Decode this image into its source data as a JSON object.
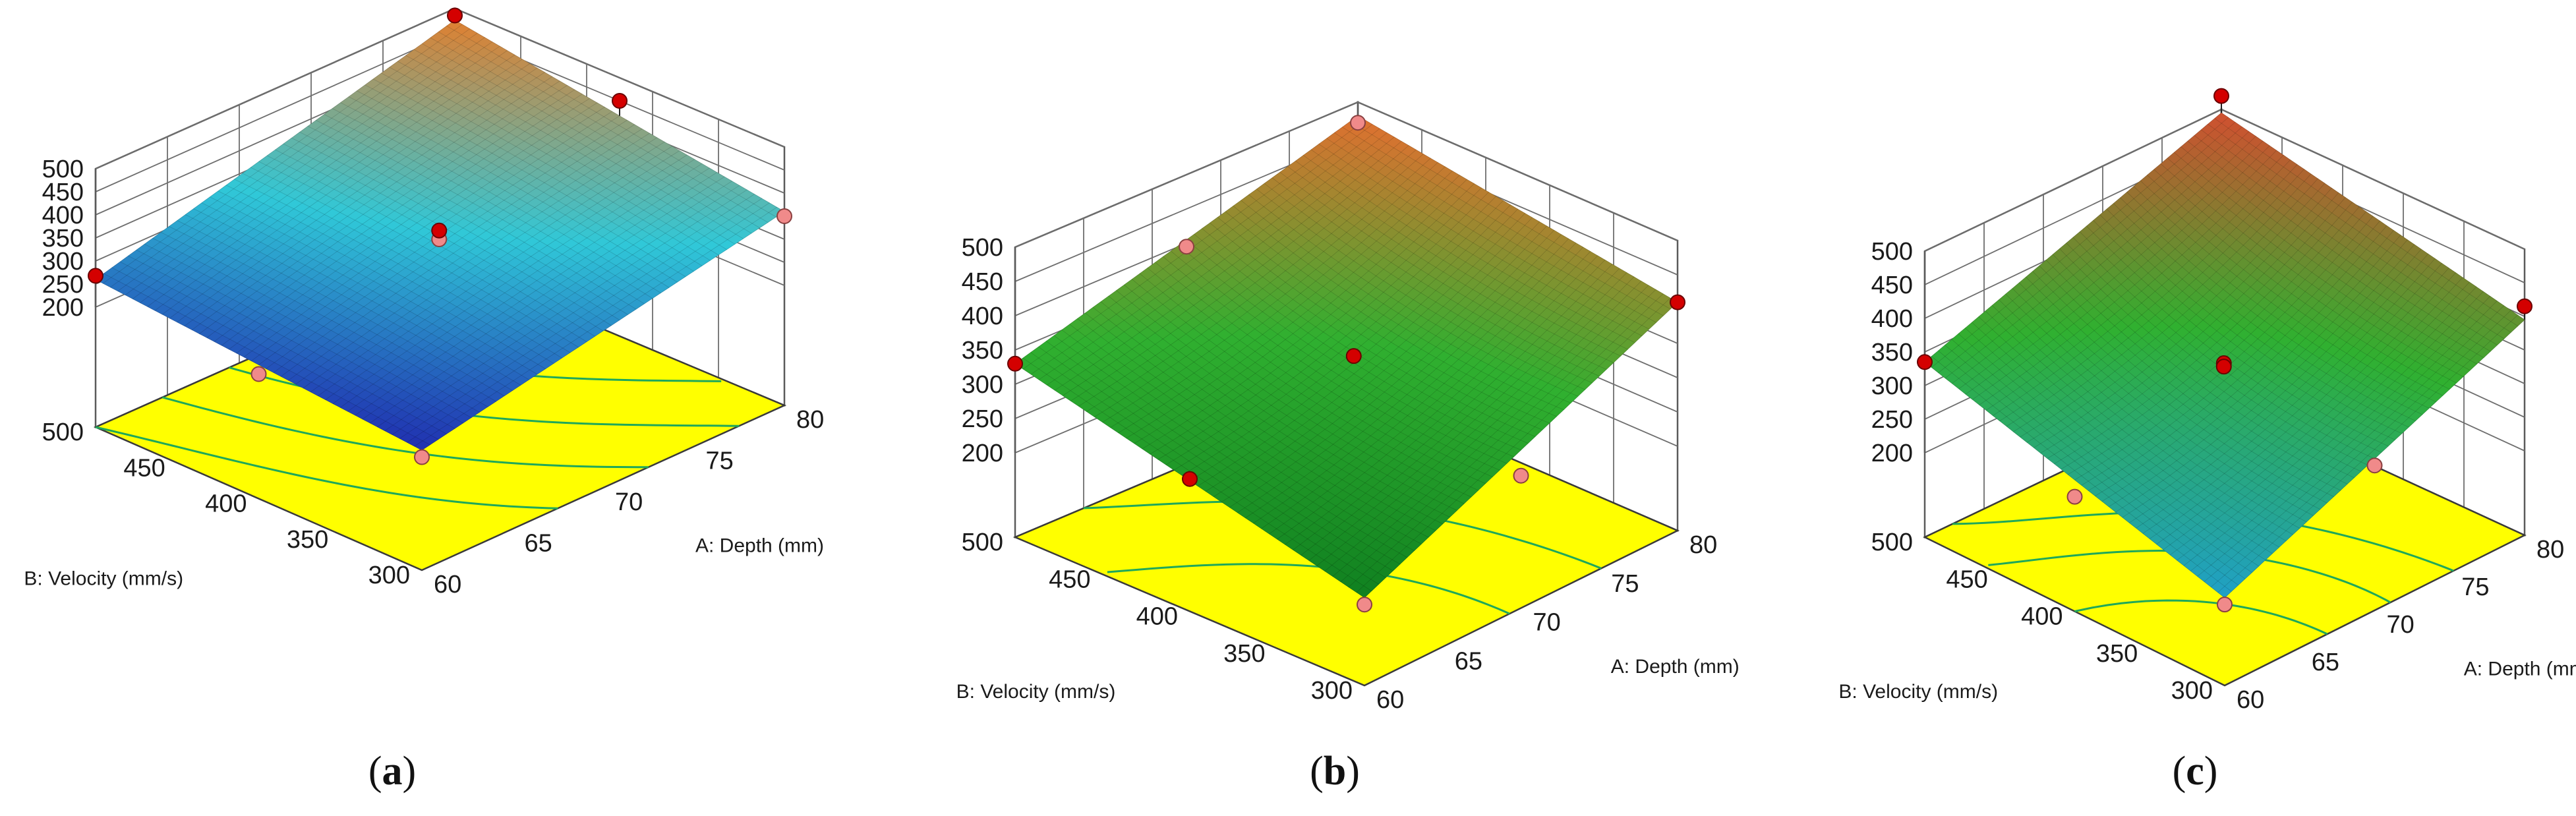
{
  "chart_data": [
    {
      "type": "surface3d",
      "panel_label": "a",
      "zlim": [
        200,
        500
      ],
      "z_ticks": [
        200,
        250,
        300,
        350,
        400,
        450,
        500
      ],
      "xlabel": "A: Depth (mm)",
      "ylabel": "B: Velocity (mm/s)",
      "x_range": [
        60,
        80
      ],
      "x_ticks": [
        60,
        65,
        70,
        75,
        80
      ],
      "y_range": [
        300,
        500
      ],
      "y_ticks": [
        300,
        350,
        400,
        450,
        500
      ],
      "corners": {
        "depth60_vel300": 200,
        "depth80_vel300": 360,
        "depth60_vel500": 260,
        "depth80_vel500": 475
      },
      "center_value": 335,
      "color_low": "#2030b0",
      "color_mid": "#30c8d8",
      "color_high": "#e08030",
      "contours": [
        260,
        300,
        340,
        380
      ],
      "points": [
        {
          "depth": 60,
          "velocity": 300,
          "value": 185
        },
        {
          "depth": 80,
          "velocity": 500,
          "value": 485
        },
        {
          "depth": 80,
          "velocity": 400,
          "value": 450
        },
        {
          "depth": 60,
          "velocity": 500,
          "value": 268
        },
        {
          "depth": 70,
          "velocity": 400,
          "value": 345
        },
        {
          "depth": 70,
          "velocity": 400,
          "value": 326
        },
        {
          "depth": 80,
          "velocity": 300,
          "value": 350
        },
        {
          "depth": 60,
          "velocity": 400,
          "value": 210
        }
      ]
    },
    {
      "type": "surface3d",
      "panel_label": "b",
      "zlim": [
        200,
        500
      ],
      "z_ticks": [
        200,
        250,
        300,
        350,
        400,
        450,
        500
      ],
      "xlabel": "A: Depth (mm)",
      "ylabel": "B: Velocity (mm/s)",
      "x_range": [
        60,
        80
      ],
      "x_ticks": [
        60,
        65,
        70,
        75,
        80
      ],
      "y_range": [
        300,
        500
      ],
      "y_ticks": [
        300,
        350,
        400,
        450,
        500
      ],
      "corners": {
        "depth60_vel300": 205,
        "depth80_vel300": 410,
        "depth60_vel500": 330,
        "depth80_vel500": 480
      },
      "center_value": 330,
      "color_low": "#108020",
      "color_mid": "#30b030",
      "color_high": "#e07030",
      "contours": [
        300,
        360
      ],
      "points": [
        {
          "depth": 60,
          "velocity": 300,
          "value": 195
        },
        {
          "depth": 80,
          "velocity": 500,
          "value": 470
        },
        {
          "depth": 80,
          "velocity": 300,
          "value": 410
        },
        {
          "depth": 60,
          "velocity": 500,
          "value": 330
        },
        {
          "depth": 70,
          "velocity": 400,
          "value": 340
        },
        {
          "depth": 70,
          "velocity": 500,
          "value": 395
        },
        {
          "depth": 70,
          "velocity": 300,
          "value": 270
        },
        {
          "depth": 60,
          "velocity": 400,
          "value": 270
        }
      ]
    },
    {
      "type": "surface3d",
      "panel_label": "c",
      "zlim": [
        200,
        500
      ],
      "z_ticks": [
        200,
        250,
        300,
        350,
        400,
        450,
        500
      ],
      "xlabel": "A: Depth (mm)",
      "ylabel": "B: Velocity (mm/s)",
      "x_range": [
        60,
        80
      ],
      "x_ticks": [
        60,
        65,
        70,
        75,
        80
      ],
      "y_range": [
        300,
        500
      ],
      "y_ticks": [
        300,
        350,
        400,
        450,
        500
      ],
      "corners": {
        "depth60_vel300": 205,
        "depth80_vel300": 395,
        "depth60_vel500": 335,
        "depth80_vel500": 495
      },
      "center_value": 325,
      "color_low": "#20a0c8",
      "color_mid": "#30b030",
      "color_high": "#d05030",
      "contours": [
        270,
        310,
        350
      ],
      "points": [
        {
          "depth": 60,
          "velocity": 300,
          "value": 195
        },
        {
          "depth": 80,
          "velocity": 500,
          "value": 520
        },
        {
          "depth": 80,
          "velocity": 300,
          "value": 415
        },
        {
          "depth": 60,
          "velocity": 500,
          "value": 335
        },
        {
          "depth": 70,
          "velocity": 400,
          "value": 335
        },
        {
          "depth": 70,
          "velocity": 400,
          "value": 330
        },
        {
          "depth": 60,
          "velocity": 400,
          "value": 245
        },
        {
          "depth": 70,
          "velocity": 300,
          "value": 290
        }
      ]
    }
  ]
}
